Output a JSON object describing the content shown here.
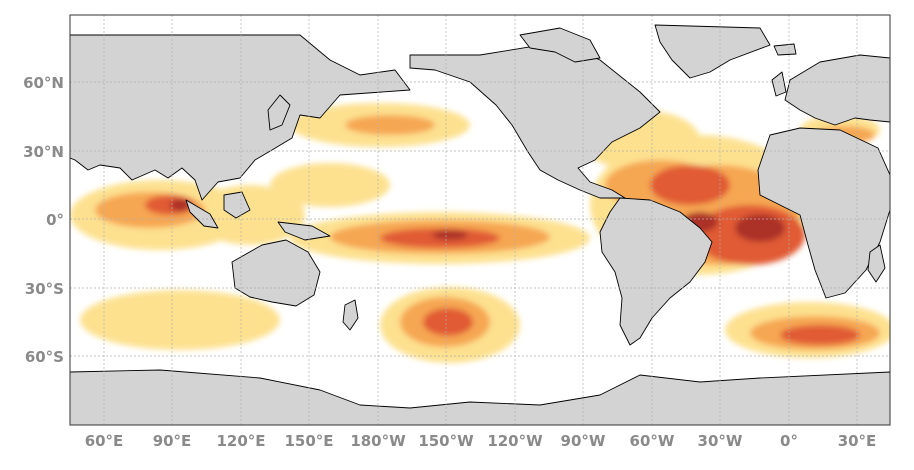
{
  "map": {
    "projection": "equirectangular",
    "land_color": "#d3d3d3",
    "ocean_color": "#ffffff",
    "coastline_color": "#000000",
    "gridlines": true,
    "colors": {
      "low": "#fde08a",
      "medium": "#f6a349",
      "high": "#e0522a",
      "very_high": "#a8281d"
    },
    "lat_labels": [
      "60°N",
      "30°N",
      "0°",
      "30°S",
      "60°S"
    ],
    "lon_labels": [
      "60°E",
      "90°E",
      "120°E",
      "150°E",
      "180°W",
      "150°W",
      "120°W",
      "90°W",
      "60°W",
      "30°W",
      "0°",
      "30°E"
    ]
  }
}
